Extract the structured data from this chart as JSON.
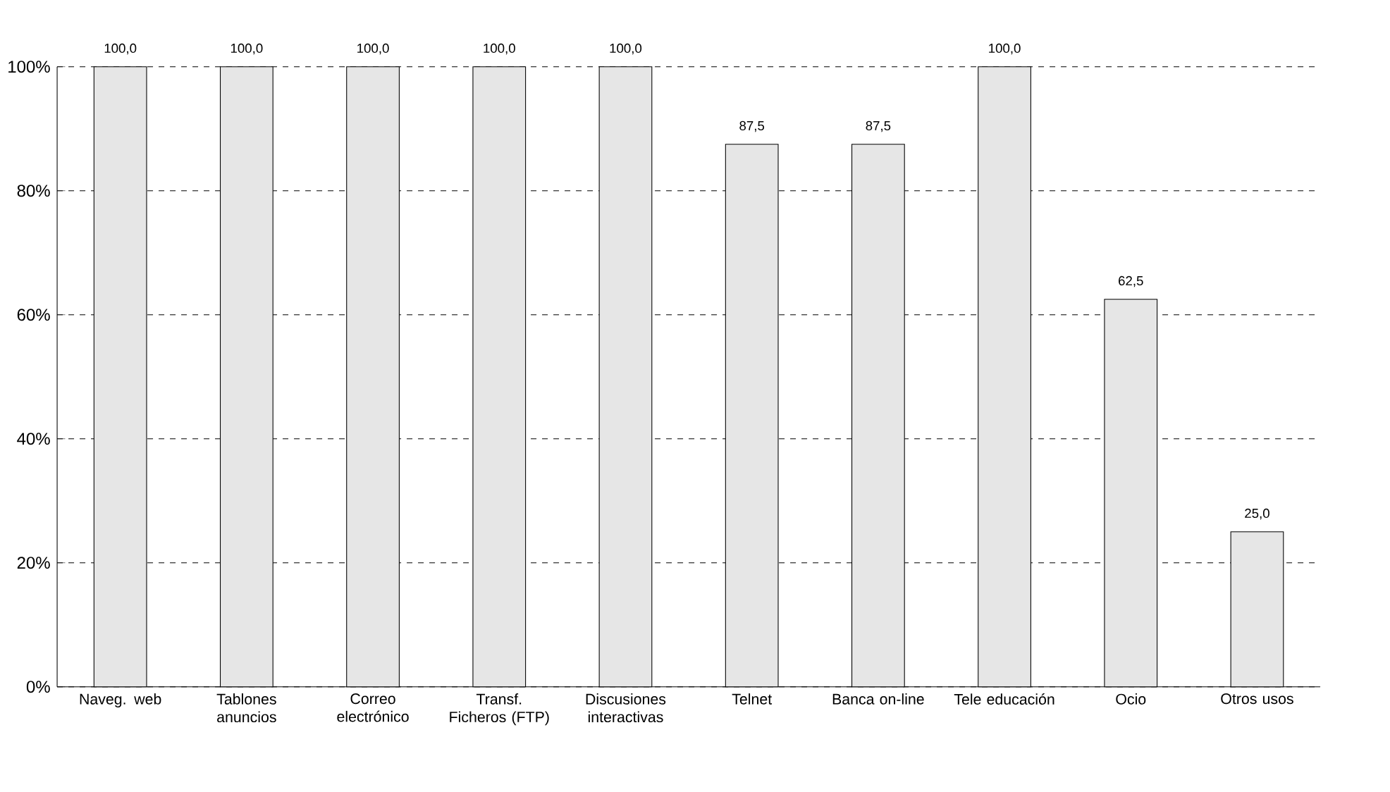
{
  "chart_data": {
    "type": "bar",
    "categories": [
      "Naveg. web",
      "Tablones anuncios",
      "Correo electrónico",
      "Transf. Ficheros (FTP)",
      "Discusiones interactivas",
      "Telnet",
      "Banca on-line",
      "Tele educación",
      "Ocio",
      "Otros usos"
    ],
    "values": [
      100,
      100,
      100,
      100,
      100,
      87.5,
      87.5,
      100,
      62.5,
      25
    ],
    "value_labels": [
      "100,0",
      "100,0",
      "100,0",
      "100,0",
      "100,0",
      "87,5",
      "87,5",
      "100,0",
      "62,5",
      "25,0"
    ],
    "color": "#e6e6e6",
    "ylim": [
      0,
      100
    ],
    "yticks": [
      {
        "value": 0,
        "label": "0%"
      },
      {
        "value": 20,
        "label": "20%"
      },
      {
        "value": 40,
        "label": "40%"
      },
      {
        "value": 60,
        "label": "60%"
      },
      {
        "value": 80,
        "label": "80%"
      },
      {
        "value": 100,
        "label": "100%"
      }
    ],
    "grid": "y"
  }
}
